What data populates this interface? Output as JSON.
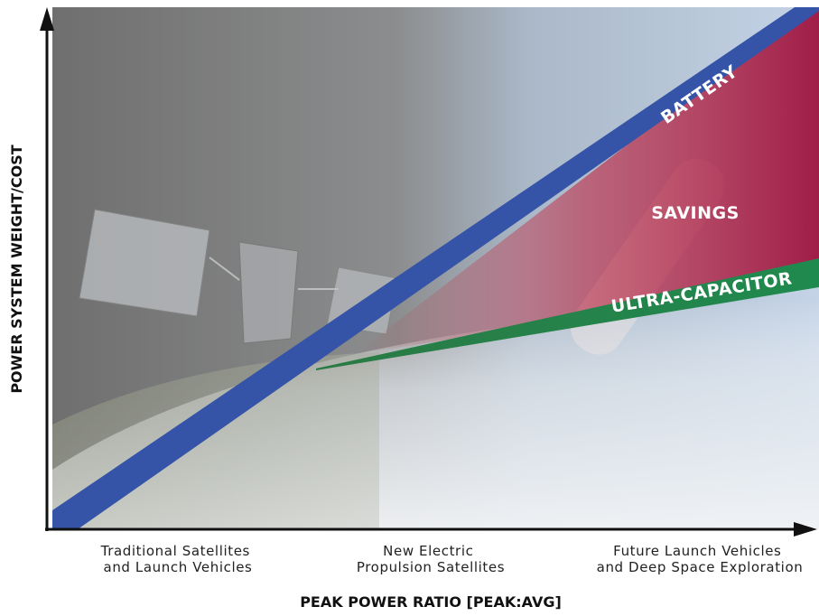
{
  "y_axis": {
    "title": "POWER SYSTEM WEIGHT/COST"
  },
  "x_axis": {
    "title": "PEAK POWER RATIO [PEAK:AVG]",
    "categories": [
      {
        "lines": [
          "Traditional Satellites",
          "and Launch Vehicles"
        ]
      },
      {
        "lines": [
          "New Electric",
          "Propulsion Satellites"
        ]
      },
      {
        "lines": [
          "Future Launch Vehicles",
          "and Deep Space Exploration"
        ]
      }
    ]
  },
  "bands": {
    "battery": "BATTERY",
    "ultra_capacitor": "ULTRA-CAPACITOR",
    "savings": "SAVINGS"
  }
}
